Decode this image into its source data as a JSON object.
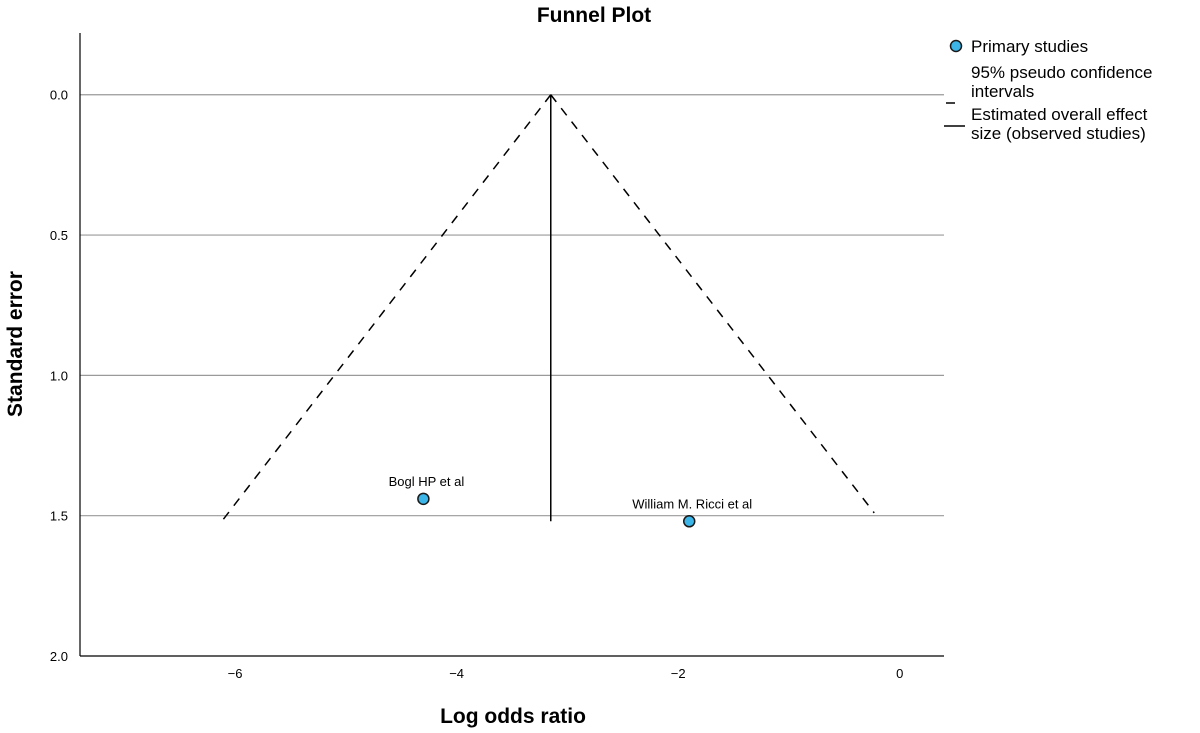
{
  "chart_data": {
    "type": "scatter",
    "title": "Funnel Plot",
    "xlabel": "Log odds ratio",
    "ylabel": "Standard error",
    "xlim": [
      -7.4,
      0.4
    ],
    "ylim": [
      -0.22,
      2.0
    ],
    "y_inverted": true,
    "x_ticks": [
      {
        "value": -6,
        "label": "−6"
      },
      {
        "value": -4,
        "label": "−4"
      },
      {
        "value": -2,
        "label": "−2"
      },
      {
        "value": 0,
        "label": "0"
      }
    ],
    "y_ticks": [
      {
        "value": 0.0,
        "label": "0.0"
      },
      {
        "value": 0.5,
        "label": "0.5"
      },
      {
        "value": 1.0,
        "label": "1.0"
      },
      {
        "value": 1.5,
        "label": "1.5"
      },
      {
        "value": 2.0,
        "label": "2.0"
      }
    ],
    "grid": "horizontal",
    "points": [
      {
        "label": "Bogl HP et al",
        "x": -4.3,
        "y": 1.44
      },
      {
        "label": "William M. Ricci et al",
        "x": -1.9,
        "y": 1.52
      }
    ],
    "overall_effect": -3.15,
    "ci_lines": [
      {
        "x": [
          -3.15,
          -6.12
        ],
        "y": [
          0.0,
          1.52
        ]
      },
      {
        "x": [
          -3.15,
          -0.23
        ],
        "y": [
          0.0,
          1.49
        ]
      }
    ],
    "effect_line": {
      "x": -3.15,
      "y": [
        0.0,
        1.52
      ]
    },
    "legend": {
      "placement": "top-right",
      "entries": [
        {
          "label": "Primary studies",
          "symbol": "circle"
        },
        {
          "label": "95% pseudo confidence intervals",
          "symbol": "dashed"
        },
        {
          "label": "Estimated overall effect size (observed studies)",
          "symbol": "solid"
        }
      ]
    },
    "colors": {
      "point_fill": "#3cb6e8",
      "point_stroke": "#1a1a1a",
      "grid": "#9a9a9a",
      "line": "#000000"
    }
  }
}
